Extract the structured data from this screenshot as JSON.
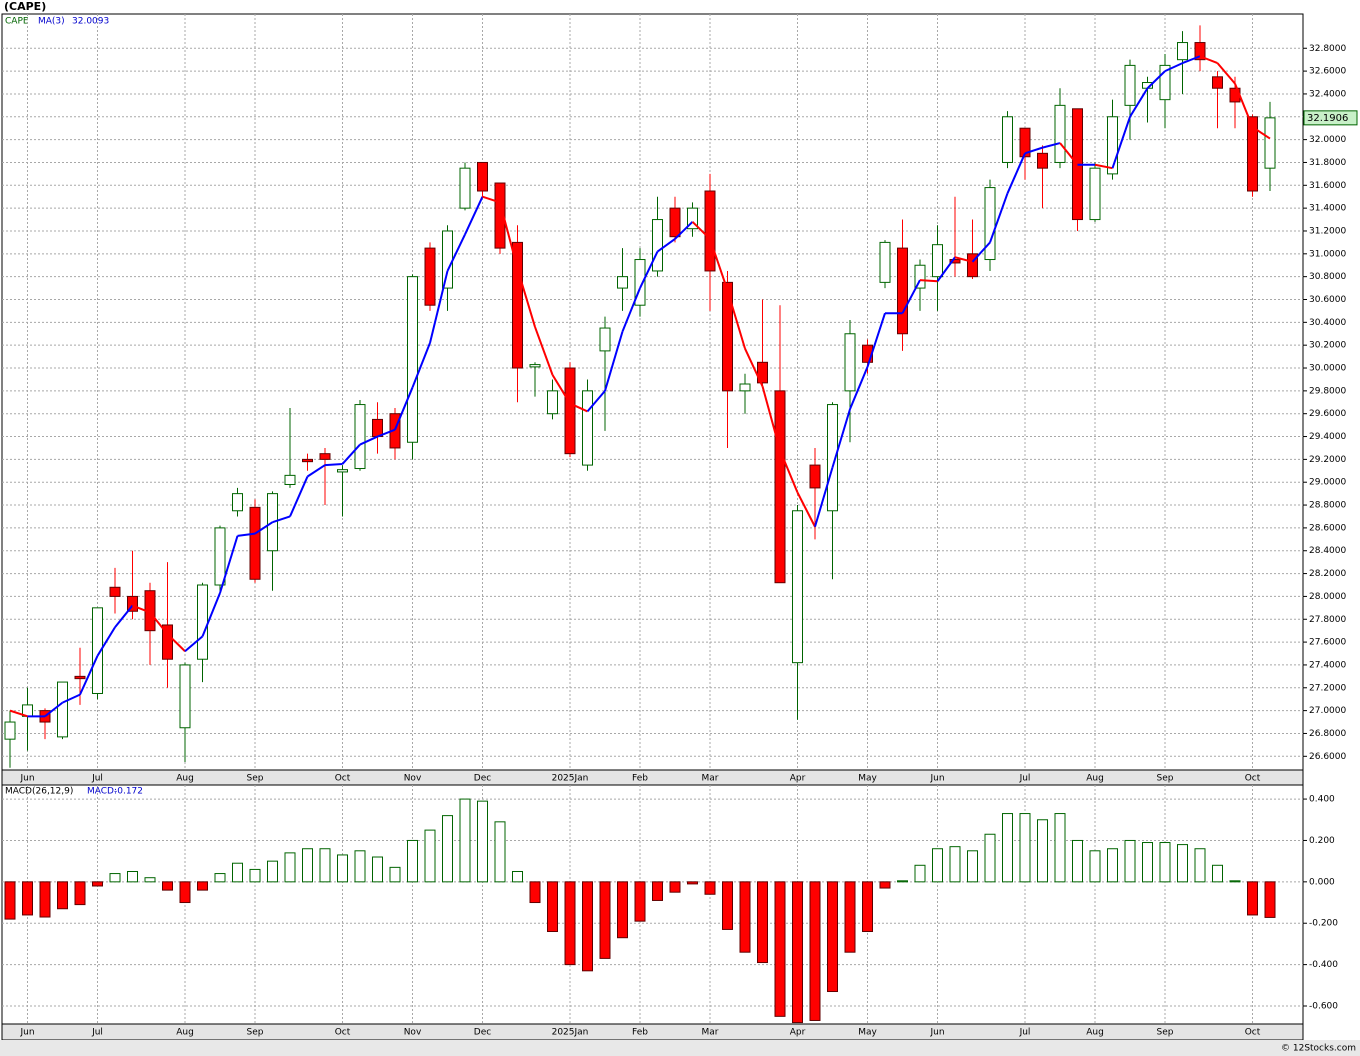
{
  "watermark": "© 12Stocks.com",
  "chart_data": [
    {
      "type": "candlestick",
      "title": "(CAPE)",
      "name": "CAPE",
      "categories": [
        null,
        "Jun",
        null,
        null,
        null,
        "Jul",
        null,
        null,
        null,
        null,
        "Aug",
        null,
        null,
        null,
        "Sep",
        null,
        null,
        null,
        null,
        "Oct",
        null,
        null,
        null,
        "Nov",
        null,
        null,
        null,
        "Dec",
        null,
        null,
        null,
        null,
        "2025Jan",
        null,
        null,
        null,
        "Feb",
        null,
        null,
        null,
        "Mar",
        null,
        null,
        null,
        null,
        "Apr",
        null,
        null,
        null,
        "May",
        null,
        null,
        null,
        "Jun",
        null,
        null,
        null,
        null,
        "Jul",
        null,
        null,
        null,
        "Aug",
        null,
        null,
        null,
        "Sep",
        null,
        null,
        null,
        null,
        "Oct",
        null
      ],
      "open": [
        26.75,
        26.95,
        27.0,
        26.77,
        27.3,
        27.15,
        28.08,
        28.0,
        28.05,
        27.75,
        26.85,
        27.45,
        28.1,
        28.75,
        28.78,
        28.4,
        28.98,
        29.2,
        29.25,
        29.09,
        29.12,
        29.55,
        29.6,
        29.35,
        31.05,
        30.7,
        31.4,
        31.8,
        31.62,
        31.1,
        30.01,
        29.6,
        30.0,
        29.15,
        30.15,
        30.7,
        30.55,
        30.85,
        31.4,
        31.22,
        31.55,
        30.75,
        29.8,
        30.05,
        29.8,
        27.42,
        29.15,
        28.75,
        29.8,
        30.2,
        30.75,
        31.05,
        30.7,
        30.8,
        30.95,
        31.0,
        30.95,
        31.8,
        32.1,
        31.88,
        31.8,
        32.27,
        31.3,
        31.7,
        32.3,
        32.45,
        32.35,
        32.7,
        32.85,
        32.55,
        32.45,
        32.2,
        31.75
      ],
      "high": [
        27.0,
        27.2,
        27.02,
        27.25,
        27.55,
        27.9,
        28.25,
        28.4,
        28.12,
        28.3,
        27.42,
        28.12,
        28.62,
        28.95,
        28.85,
        28.92,
        29.65,
        29.25,
        29.3,
        29.15,
        29.72,
        29.7,
        29.65,
        30.82,
        31.1,
        31.25,
        31.8,
        31.8,
        31.62,
        31.25,
        30.05,
        29.9,
        30.05,
        29.9,
        30.45,
        31.05,
        31.05,
        31.5,
        31.5,
        31.45,
        31.7,
        30.85,
        29.95,
        30.6,
        30.55,
        28.8,
        29.3,
        29.7,
        30.42,
        30.25,
        31.12,
        31.3,
        30.95,
        31.25,
        31.5,
        31.3,
        31.65,
        32.25,
        32.1,
        31.95,
        32.45,
        32.27,
        31.8,
        32.35,
        32.7,
        32.55,
        32.75,
        32.95,
        33.0,
        32.6,
        32.55,
        32.22,
        32.33
      ],
      "low": [
        26.5,
        26.65,
        26.75,
        26.75,
        27.05,
        27.1,
        27.85,
        27.8,
        27.4,
        27.2,
        26.55,
        27.25,
        28.05,
        28.7,
        28.12,
        28.05,
        28.95,
        29.1,
        28.8,
        28.7,
        29.1,
        29.25,
        29.2,
        29.2,
        30.5,
        30.5,
        31.38,
        31.5,
        31.0,
        29.7,
        29.75,
        29.55,
        29.22,
        29.1,
        29.45,
        30.5,
        30.45,
        30.8,
        31.1,
        31.15,
        30.5,
        29.3,
        29.6,
        29.85,
        28.12,
        26.92,
        28.5,
        28.15,
        29.35,
        29.95,
        30.7,
        30.15,
        30.5,
        30.5,
        30.8,
        30.78,
        30.85,
        31.75,
        31.65,
        31.4,
        31.75,
        31.2,
        31.28,
        31.65,
        32.0,
        32.15,
        32.1,
        32.4,
        32.6,
        32.1,
        32.1,
        31.5,
        31.55
      ],
      "close": [
        26.9,
        27.05,
        26.9,
        27.25,
        27.28,
        27.9,
        28.0,
        27.87,
        27.7,
        27.45,
        27.4,
        28.1,
        28.6,
        28.9,
        28.15,
        28.9,
        29.06,
        29.18,
        29.2,
        29.11,
        29.68,
        29.4,
        29.3,
        30.8,
        30.55,
        31.2,
        31.75,
        31.55,
        31.05,
        30.0,
        30.03,
        29.8,
        29.25,
        29.8,
        30.35,
        30.8,
        30.95,
        31.3,
        31.15,
        31.4,
        30.85,
        29.8,
        29.86,
        29.87,
        28.12,
        28.75,
        28.95,
        29.68,
        30.3,
        30.05,
        31.1,
        30.3,
        30.9,
        31.08,
        30.92,
        30.8,
        31.58,
        32.2,
        31.85,
        31.75,
        32.3,
        31.3,
        31.75,
        32.2,
        32.65,
        32.5,
        32.65,
        32.85,
        32.7,
        32.45,
        32.33,
        31.55,
        32.1906
      ],
      "up_color": "#006400",
      "down_color": "#ff0000",
      "ma": {
        "name": "MA(3)",
        "up_color": "#0000ff",
        "down_color": "#ff0000",
        "values": [
          27.0,
          26.95,
          26.95,
          27.07,
          27.14,
          27.48,
          27.73,
          27.92,
          27.86,
          27.67,
          27.52,
          27.65,
          28.03,
          28.53,
          28.55,
          28.65,
          28.7,
          29.05,
          29.15,
          29.16,
          29.33,
          29.4,
          29.46,
          29.83,
          30.22,
          30.85,
          31.17,
          31.5,
          31.45,
          30.87,
          30.36,
          29.94,
          29.69,
          29.62,
          29.8,
          30.32,
          30.7,
          31.02,
          31.13,
          31.28,
          31.13,
          30.68,
          30.17,
          29.84,
          29.28,
          28.91,
          28.61,
          29.13,
          29.64,
          30.01,
          30.48,
          30.48,
          30.77,
          30.76,
          30.97,
          30.93,
          31.1,
          31.53,
          31.88,
          31.93,
          31.97,
          31.78,
          31.78,
          31.75,
          32.2,
          32.45,
          32.6,
          32.67,
          32.73,
          32.67,
          32.49,
          32.11,
          32.0093
        ]
      },
      "ylim": [
        26.48,
        33.1
      ],
      "yticks": [
        {
          "value": 32.8,
          "label": "32.8000"
        },
        {
          "value": 32.6,
          "label": "32.6000"
        },
        {
          "value": 32.4,
          "label": "32.4000"
        },
        {
          "value": 32.2,
          "label": "32.2000"
        },
        {
          "value": 32.0,
          "label": "32.0000"
        },
        {
          "value": 31.8,
          "label": "31.8000"
        },
        {
          "value": 31.6,
          "label": "31.6000"
        },
        {
          "value": 31.4,
          "label": "31.4000"
        },
        {
          "value": 31.2,
          "label": "31.2000"
        },
        {
          "value": 31.0,
          "label": "31.0000"
        },
        {
          "value": 30.8,
          "label": "30.8000"
        },
        {
          "value": 30.6,
          "label": "30.6000"
        },
        {
          "value": 30.4,
          "label": "30.4000"
        },
        {
          "value": 30.2,
          "label": "30.2000"
        },
        {
          "value": 30.0,
          "label": "30.0000"
        },
        {
          "value": 29.8,
          "label": "29.8000"
        },
        {
          "value": 29.6,
          "label": "29.6000"
        },
        {
          "value": 29.4,
          "label": "29.4000"
        },
        {
          "value": 29.2,
          "label": "29.2000"
        },
        {
          "value": 29.0,
          "label": "29.0000"
        },
        {
          "value": 28.8,
          "label": "28.8000"
        },
        {
          "value": 28.6,
          "label": "28.6000"
        },
        {
          "value": 28.4,
          "label": "28.4000"
        },
        {
          "value": 28.2,
          "label": "28.2000"
        },
        {
          "value": 28.0,
          "label": "28.0000"
        },
        {
          "value": 27.8,
          "label": "27.8000"
        },
        {
          "value": 27.6,
          "label": "27.6000"
        },
        {
          "value": 27.4,
          "label": "27.4000"
        },
        {
          "value": 27.2,
          "label": "27.2000"
        },
        {
          "value": 27.0,
          "label": "27.0000"
        },
        {
          "value": 26.8,
          "label": "26.8000"
        },
        {
          "value": 26.6,
          "label": "26.6000"
        }
      ],
      "grid": true
    },
    {
      "type": "bar",
      "name": "MACD(26,12,9)",
      "value_prefix": "MACD:",
      "categories": [
        null,
        "Jun",
        null,
        null,
        null,
        "Jul",
        null,
        null,
        null,
        null,
        "Aug",
        null,
        null,
        null,
        "Sep",
        null,
        null,
        null,
        null,
        "Oct",
        null,
        null,
        null,
        "Nov",
        null,
        null,
        null,
        "Dec",
        null,
        null,
        null,
        null,
        "2025Jan",
        null,
        null,
        null,
        "Feb",
        null,
        null,
        null,
        "Mar",
        null,
        null,
        null,
        null,
        "Apr",
        null,
        null,
        null,
        "May",
        null,
        null,
        null,
        "Jun",
        null,
        null,
        null,
        null,
        "Jul",
        null,
        null,
        null,
        "Aug",
        null,
        null,
        null,
        "Sep",
        null,
        null,
        null,
        null,
        "Oct",
        null
      ],
      "values": [
        -0.18,
        -0.16,
        -0.17,
        -0.13,
        -0.11,
        -0.02,
        0.04,
        0.05,
        0.02,
        -0.04,
        -0.1,
        -0.04,
        0.04,
        0.09,
        0.06,
        0.1,
        0.14,
        0.16,
        0.16,
        0.13,
        0.15,
        0.12,
        0.07,
        0.2,
        0.25,
        0.32,
        0.4,
        0.39,
        0.29,
        0.05,
        -0.1,
        -0.24,
        -0.4,
        -0.43,
        -0.37,
        -0.27,
        -0.19,
        -0.09,
        -0.05,
        -0.01,
        -0.06,
        -0.23,
        -0.34,
        -0.39,
        -0.65,
        -0.68,
        -0.67,
        -0.53,
        -0.34,
        -0.24,
        -0.03,
        0.005,
        0.08,
        0.16,
        0.17,
        0.15,
        0.23,
        0.33,
        0.33,
        0.3,
        0.33,
        0.2,
        0.15,
        0.16,
        0.2,
        0.19,
        0.19,
        0.18,
        0.16,
        0.08,
        0.005,
        -0.16,
        -0.172
      ],
      "positive_color": "#006400",
      "negative_color": "#ff0000",
      "ylim": [
        -0.687,
        0.468
      ],
      "yticks": [
        {
          "value": 0.4,
          "label": "0.400"
        },
        {
          "value": 0.2,
          "label": "0.200"
        },
        {
          "value": 0,
          "label": "0.000"
        },
        {
          "value": -0.2,
          "label": "-0.200"
        },
        {
          "value": -0.4,
          "label": "-0.400"
        },
        {
          "value": -0.6,
          "label": "-0.600"
        }
      ],
      "grid": true
    }
  ]
}
